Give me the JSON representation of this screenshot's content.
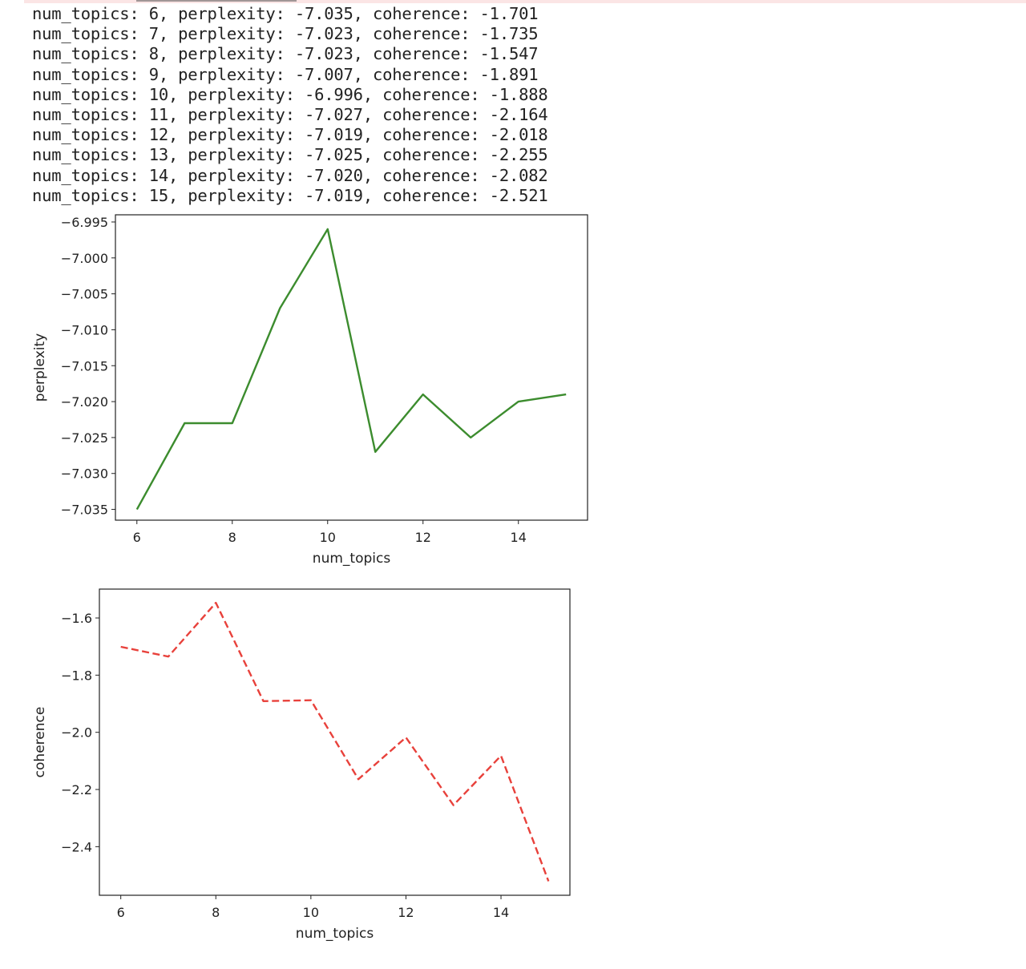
{
  "output_lines": [
    "num_topics: 6, perplexity: -7.035, coherence: -1.701",
    "num_topics: 7, perplexity: -7.023, coherence: -1.735",
    "num_topics: 8, perplexity: -7.023, coherence: -1.547",
    "num_topics: 9, perplexity: -7.007, coherence: -1.891",
    "num_topics: 10, perplexity: -6.996, coherence: -1.888",
    "num_topics: 11, perplexity: -7.027, coherence: -2.164",
    "num_topics: 12, perplexity: -7.019, coherence: -2.018",
    "num_topics: 13, perplexity: -7.025, coherence: -2.255",
    "num_topics: 14, perplexity: -7.020, coherence: -2.082",
    "num_topics: 15, perplexity: -7.019, coherence: -2.521"
  ],
  "chart_data": [
    {
      "type": "line",
      "xlabel": "num_topics",
      "ylabel": "perplexity",
      "x": [
        6,
        7,
        8,
        9,
        10,
        11,
        12,
        13,
        14,
        15
      ],
      "series": [
        {
          "values": [
            -7.035,
            -7.023,
            -7.023,
            -7.007,
            -6.996,
            -7.027,
            -7.019,
            -7.025,
            -7.02,
            -7.019
          ],
          "color": "#3c8c2e",
          "style": "solid"
        }
      ],
      "xlim": [
        5.55,
        15.45
      ],
      "ylim": [
        -7.0365,
        -6.994
      ],
      "xticks": [
        6,
        8,
        10,
        12,
        14
      ],
      "yticks": [
        -6.995,
        -7.0,
        -7.005,
        -7.01,
        -7.015,
        -7.02,
        -7.025,
        -7.03,
        -7.035
      ],
      "ytick_labels": [
        "−6.995",
        "−7.000",
        "−7.005",
        "−7.010",
        "−7.015",
        "−7.020",
        "−7.025",
        "−7.030",
        "−7.035"
      ],
      "grid": false
    },
    {
      "type": "line",
      "xlabel": "num_topics",
      "ylabel": "coherence",
      "x": [
        6,
        7,
        8,
        9,
        10,
        11,
        12,
        13,
        14,
        15
      ],
      "series": [
        {
          "values": [
            -1.701,
            -1.735,
            -1.547,
            -1.891,
            -1.888,
            -2.164,
            -2.018,
            -2.255,
            -2.082,
            -2.521
          ],
          "color": "#e8413b",
          "style": "dashed"
        }
      ],
      "xlim": [
        5.55,
        15.45
      ],
      "ylim": [
        -2.57,
        -1.499
      ],
      "xticks": [
        6,
        8,
        10,
        12,
        14
      ],
      "yticks": [
        -1.6,
        -1.8,
        -2.0,
        -2.2,
        -2.4
      ],
      "ytick_labels": [
        "−1.6",
        "−1.8",
        "−2.0",
        "−2.2",
        "−2.4"
      ],
      "grid": false
    }
  ]
}
